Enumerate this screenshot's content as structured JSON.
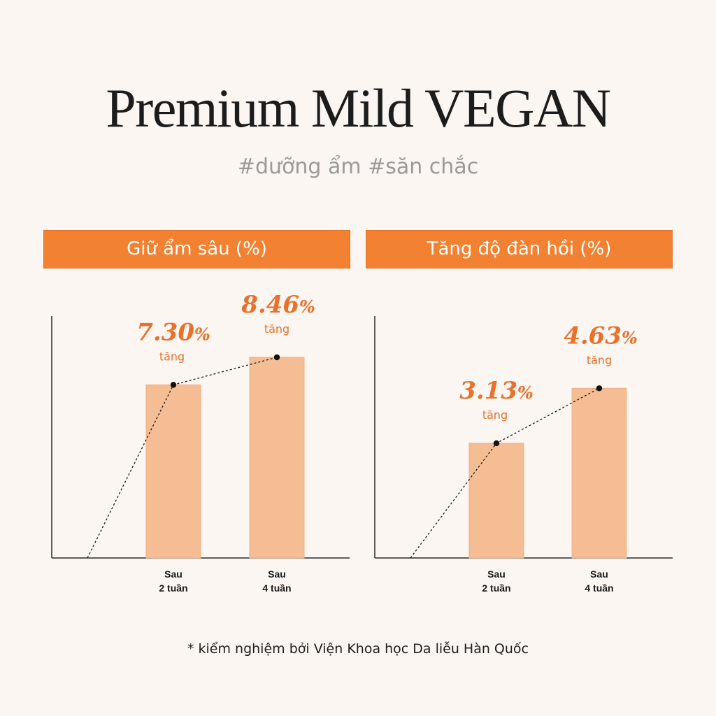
{
  "title": "Premium Mild VEGAN",
  "subtitle": "#dưỡng ẩm #săn chắc",
  "footnote": "* kiểm nghiệm bởi Viện Khoa học Da liễu Hàn Quốc",
  "colors": {
    "header_bg": "#f28232",
    "bar_fill": "#f5bd94",
    "value_text": "#e8712b",
    "background": "#fcf6f2"
  },
  "chart_data": [
    {
      "type": "bar",
      "title": "Giữ ẩm sâu (%)",
      "categories": [
        "Sau\n2 tuần",
        "Sau\n4 tuần"
      ],
      "values": [
        7.3,
        8.46
      ],
      "value_labels": [
        "7.30",
        "8.46"
      ],
      "value_unit": "%",
      "increase_label": "tăng",
      "trend_line": true,
      "grid": false,
      "ylim": [
        0,
        10.2
      ]
    },
    {
      "type": "bar",
      "title": "Tăng độ đàn hồi (%)",
      "categories": [
        "Sau\n2 tuần",
        "Sau\n4 tuần"
      ],
      "values": [
        3.13,
        4.63
      ],
      "value_labels": [
        "3.13",
        "4.63"
      ],
      "value_unit": "%",
      "increase_label": "tăng",
      "trend_line": true,
      "grid": false,
      "ylim": [
        0,
        6.6
      ]
    }
  ]
}
